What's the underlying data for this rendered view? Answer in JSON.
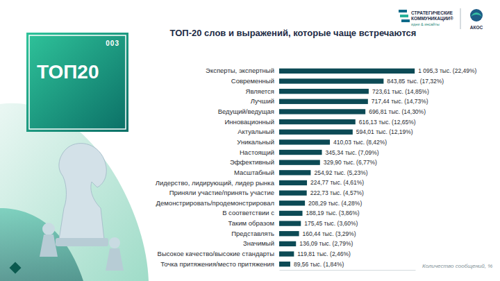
{
  "chart_data": {
    "type": "bar",
    "title": "ТОП-20 слов и выражений, которые чаще встречаются",
    "xlabel": "Количество сообщений, %",
    "orientation": "horizontal",
    "data_labels": true,
    "tick_labels": "y",
    "color": "#0c4a55",
    "xlim": [
      0,
      1100
    ],
    "categories": [
      "Эксперты, экспертный",
      "Современный",
      "Является",
      "Лучший",
      "Ведущий/ведущая",
      "Инновационный",
      "Актуальный",
      "Уникальный",
      "Настоящий",
      "Эффективный",
      "Масштабный",
      "Лидерство, лидирующий, лидер рынка",
      "Приняли участие/принять участие",
      "Демонстрировать/продемонстрировал",
      "В соответствии с",
      "Таким образом",
      "Представлять",
      "Значимый",
      "Высокое качество/высокие стандарты",
      "Точка притяжения/место притяжения"
    ],
    "values": [
      1095.3,
      843.85,
      723.61,
      717.44,
      696.81,
      616.13,
      594.01,
      410.03,
      345.34,
      329.9,
      254.92,
      224.77,
      222.73,
      208.29,
      188.19,
      175.45,
      160.44,
      136.09,
      119.81,
      89.56
    ],
    "value_labels": [
      "1 095,3 тыс. (22,49%)",
      "843,85 тыс. (17,32%)",
      "723,61 тыс. (14,85%)",
      "717,44 тыс. (14,73%)",
      "696,81 тыс. (14,30%)",
      "616,13 тыс. (12,65%)",
      "594,01 тыс. (12,19%)",
      "410,03 тыс. (8,42%)",
      "345,34 тыс. (7,09%)",
      "329,90 тыс. (6,77%)",
      "254,92 тыс. (5,23%)",
      "224,77 тыс. (4,61%)",
      "222,73 тыс. (4,57%)",
      "208,29 тыс. (4,28%)",
      "188,19 тыс. (3,86%)",
      "175,45 тыс. (3,60%)",
      "160,44 тыс. (3,29%)",
      "136,09 тыс. (2,79%)",
      "119,81 тыс. (2,46%)",
      "89,56 тыс. (1,84%)"
    ]
  },
  "badge": {
    "number": "003",
    "title": "ТОП20"
  },
  "logos": {
    "company": [
      "СТРАТЕГИЧЕСКИЕ",
      "КОММУНИКАЦИИ®"
    ],
    "slogan": "идеи & инсайты",
    "partner": "АКОС"
  }
}
